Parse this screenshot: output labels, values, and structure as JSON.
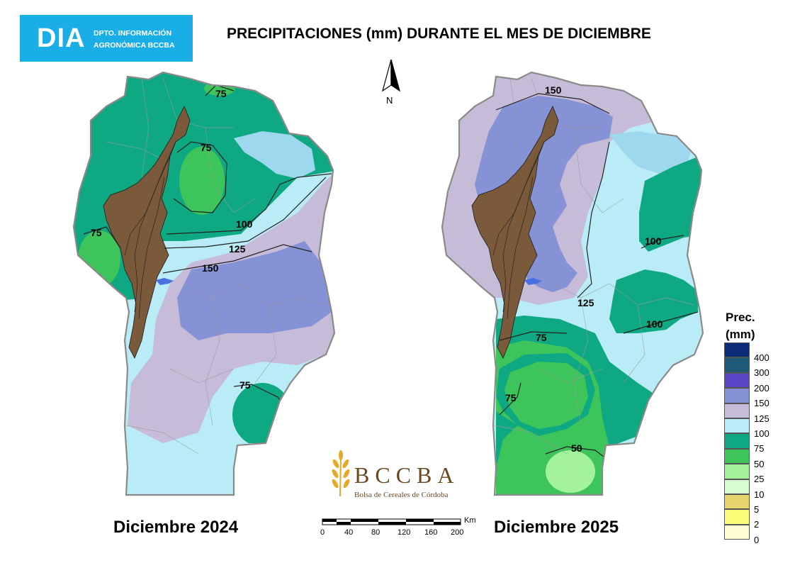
{
  "header": {
    "logo_big": "DIA",
    "logo_line1": "DPTO. INFORMACIÓN",
    "logo_line2": "AGRONÓMICA BCCBA",
    "title": "PRECIPITACIONES (mm) DURANTE EL MES DE DICIEMBRE"
  },
  "panels": {
    "left_label": "Diciembre 2024",
    "right_label": "Diciembre 2025",
    "left_isolines": [
      "75",
      "75",
      "75",
      "100",
      "125",
      "150",
      "75"
    ],
    "right_isolines": [
      "150",
      "100",
      "125",
      "100",
      "75",
      "75",
      "50"
    ]
  },
  "north": {
    "label": "N"
  },
  "scale": {
    "unit": "Km",
    "ticks": [
      "0",
      "40",
      "80",
      "120",
      "160",
      "200"
    ]
  },
  "brand": {
    "name": "BCCBA",
    "subtitle": "Bolsa de Cereales de Córdoba"
  },
  "legend": {
    "title_line1": "Prec.",
    "title_line2": "(mm)",
    "items": [
      {
        "value": "400",
        "color": "#0b2a78"
      },
      {
        "value": "300",
        "color": "#1d5a78"
      },
      {
        "value": "200",
        "color": "#5b47c6"
      },
      {
        "value": "150",
        "color": "#8592d6"
      },
      {
        "value": "125",
        "color": "#c6bcd8"
      },
      {
        "value": "100",
        "color": "#b9ecf6"
      },
      {
        "value": "75",
        "color": "#0ea882"
      },
      {
        "value": "50",
        "color": "#3dc45a"
      },
      {
        "value": "25",
        "color": "#a2f39a"
      },
      {
        "value": "10",
        "color": "#d6fcd2"
      },
      {
        "value": "5",
        "color": "#e7d46d"
      },
      {
        "value": "2",
        "color": "#fdfd7a"
      },
      {
        "value": "0",
        "color": "#fefed0"
      }
    ]
  }
}
